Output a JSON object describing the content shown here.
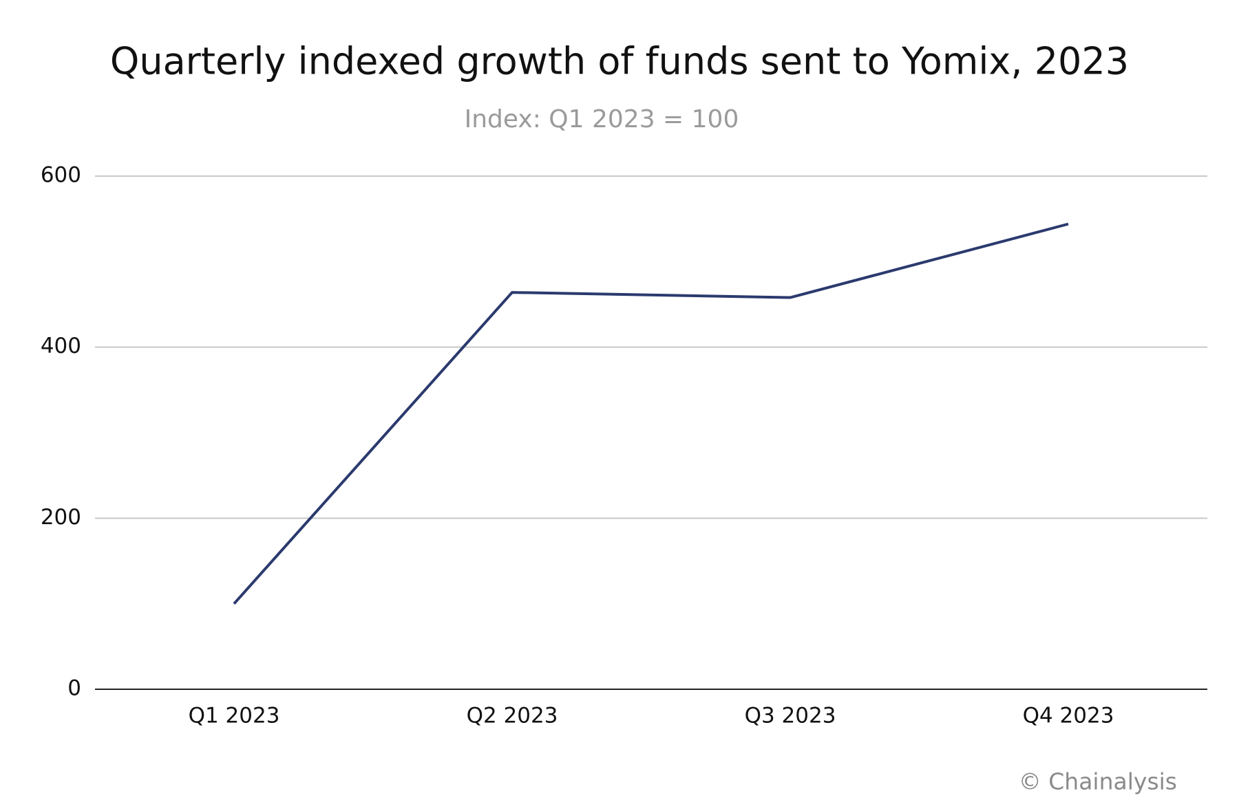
{
  "chart_data": {
    "type": "line",
    "title": "Quarterly indexed growth of funds sent to Yomix, 2023",
    "subtitle": "Index: Q1 2023 = 100",
    "source": "© Chainalysis",
    "categories": [
      "Q1 2023",
      "Q2 2023",
      "Q3 2023",
      "Q4 2023"
    ],
    "series": [
      {
        "name": "Yomix",
        "color": "#2b3a6e",
        "values": [
          100,
          464,
          458,
          544
        ]
      }
    ],
    "ylim": [
      0,
      600
    ],
    "yticks": [
      0,
      200,
      400,
      600
    ],
    "grid": true
  }
}
